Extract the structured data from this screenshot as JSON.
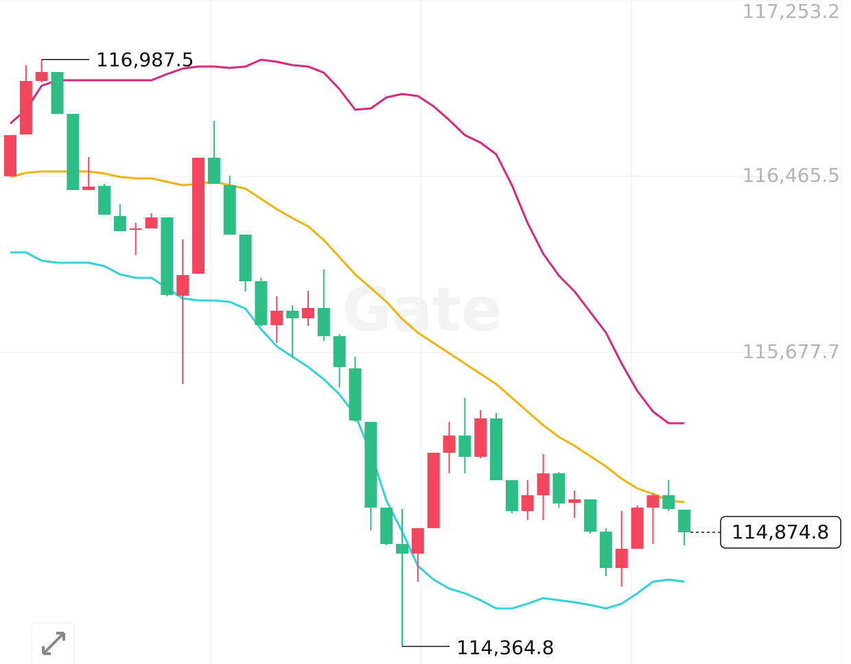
{
  "chart_data": {
    "type": "candlestick",
    "watermark": "Gate",
    "ylim": [
      114286.3,
      117253.2
    ],
    "yticks": [
      {
        "value": 117253.2,
        "label": "117,253.2"
      },
      {
        "value": 116465.5,
        "label": "116,465.5"
      },
      {
        "value": 115677.7,
        "label": "115,677.7"
      }
    ],
    "grid": true,
    "up_color": "#f4475d",
    "down_color": "#2ebd85",
    "candles": {
      "open": [
        116465.5,
        116652.5,
        116891.5,
        116931.4,
        116744.4,
        116404.2,
        116422.6,
        116287.7,
        116226.4,
        116232.6,
        116281.6,
        115932.2,
        116030.3,
        116548.2,
        116425.6,
        116205.0,
        115996.5,
        115800.4,
        115864.8,
        115831.0,
        115877.0,
        115751.3,
        115607.3,
        115368.2,
        114985.1,
        114822.7,
        114779.7,
        114893.1,
        115230.3,
        115306.9,
        115211.9,
        115383.5,
        115107.7,
        114969.8,
        115040.3,
        115138.3,
        115006.6,
        115021.9,
        114877.8,
        114715.4,
        114801.2,
        114985.1,
        115040.3,
        114975.9
      ],
      "high": [
        116649.4,
        116962.0,
        116987.5,
        116931.4,
        116744.4,
        116551.3,
        116431.8,
        116339.8,
        116257.1,
        116300.0,
        116281.6,
        116183.5,
        116548.2,
        116713.8,
        116468.6,
        116205.0,
        116011.9,
        115929.1,
        115889.3,
        115953.6,
        116048.7,
        115760.5,
        115659.4,
        115368.2,
        114985.1,
        114979.0,
        114893.1,
        115230.3,
        115368.2,
        115475.5,
        115420.3,
        115408.1,
        115107.7,
        115107.7,
        115224.2,
        115144.5,
        115061.7,
        115021.9,
        114893.1,
        114969.8,
        114994.3,
        115046.4,
        115107.7,
        114975.9
      ],
      "low": [
        116465.5,
        116652.5,
        116885.4,
        116744.4,
        116404.2,
        116404.2,
        116293.9,
        116220.3,
        116113.0,
        116232.6,
        115929.1,
        115536.8,
        116030.3,
        116431.8,
        116205.0,
        115950.6,
        115794.2,
        115720.7,
        115653.3,
        115797.3,
        115729.9,
        115521.5,
        115368.2,
        114884.0,
        114816.5,
        114364.8,
        114654.1,
        114893.1,
        115138.3,
        115138.3,
        115205.8,
        115107.7,
        114960.6,
        114929.9,
        114929.9,
        114985.1,
        114939.1,
        114868.6,
        114678.6,
        114632.6,
        114801.2,
        114822.7,
        114969.8,
        114816.5
      ],
      "close": [
        116649.4,
        116891.5,
        116931.4,
        116744.4,
        116404.2,
        116419.5,
        116293.9,
        116220.3,
        116232.6,
        116281.6,
        115935.3,
        116024.1,
        116548.2,
        116431.8,
        116205.0,
        115996.5,
        115800.4,
        115864.8,
        115831.0,
        115877.0,
        115751.3,
        115613.4,
        115374.4,
        114985.1,
        114822.7,
        114779.7,
        114893.1,
        115230.3,
        115306.9,
        115211.9,
        115383.5,
        115107.7,
        114969.8,
        115040.3,
        115138.3,
        115003.5,
        115021.9,
        114877.8,
        114715.4,
        114801.2,
        114985.1,
        115040.3,
        114979.0,
        114874.8
      ]
    },
    "lines": [
      {
        "color": "#d9277f",
        "values": [
          116701.5,
          116762.8,
          116870.1,
          116894.6,
          116894.6,
          116894.6,
          116894.6,
          116894.6,
          116894.6,
          116894.6,
          116922.2,
          116946.7,
          116955.9,
          116955.9,
          116949.8,
          116955.9,
          116986.5,
          116977.3,
          116962.0,
          116955.9,
          116928.3,
          116854.7,
          116762.8,
          116768.9,
          116818.0,
          116833.3,
          116824.1,
          116778.1,
          116716.8,
          116649.4,
          116615.7,
          116563.6,
          116425.6,
          116257.1,
          116119.1,
          116021.1,
          115950.6,
          115858.6,
          115766.7,
          115628.7,
          115506.1,
          115414.2,
          115362.1,
          115362.1
        ]
      },
      {
        "color": "#f2b311",
        "values": [
          116462.4,
          116480.8,
          116486.9,
          116486.9,
          116486.9,
          116486.9,
          116477.8,
          116462.4,
          116456.3,
          116456.3,
          116441.0,
          116425.6,
          116431.8,
          116441.0,
          116425.6,
          116410.3,
          116364.3,
          116318.4,
          116278.5,
          116241.7,
          116180.4,
          116103.8,
          116027.2,
          115965.9,
          115904.6,
          115828.0,
          115766.7,
          115720.7,
          115674.7,
          115628.7,
          115582.8,
          115536.8,
          115475.5,
          115414.2,
          115352.9,
          115300.8,
          115260.9,
          115215.0,
          115169.0,
          115113.8,
          115070.9,
          115046.4,
          115015.7,
          115009.6
        ]
      },
      {
        "color": "#32d2d9",
        "values": [
          116125.3,
          116125.3,
          116088.5,
          116079.3,
          116079.3,
          116079.3,
          116064.0,
          116027.2,
          116011.9,
          116011.9,
          115965.9,
          115919.9,
          115910.7,
          115910.7,
          115904.6,
          115873.9,
          115782.0,
          115705.4,
          115659.4,
          115613.4,
          115558.3,
          115490.8,
          115398.9,
          115230.3,
          115015.7,
          114877.8,
          114724.6,
          114663.3,
          114623.4,
          114602.0,
          114571.3,
          114534.5,
          114534.5,
          114556.0,
          114580.5,
          114571.3,
          114562.1,
          114549.9,
          114534.5,
          114556.0,
          114602.0,
          114654.1,
          114663.3,
          114654.1
        ]
      }
    ],
    "high_label": {
      "value": 116987.5,
      "label": "116,987.5"
    },
    "low_label": {
      "value": 114364.8,
      "label": "114,364.8"
    },
    "last_price": {
      "value": 114874.8,
      "label": "114,874.8"
    }
  }
}
